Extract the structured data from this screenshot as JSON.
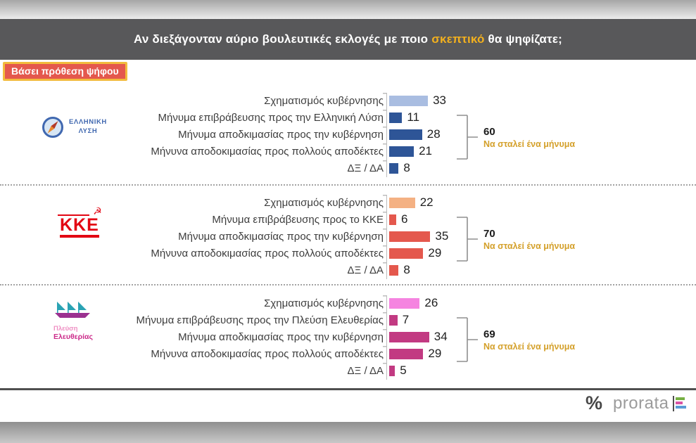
{
  "top_bar": {
    "title_pre": "Αν διεξάγονταν αύριο βουλευτικές εκλογές με ποιο ",
    "title_highlight": "σκεπτικό",
    "title_post": " θα ψηφίζατε;"
  },
  "badge_label": "Βάσει πρόθεση ψήφου",
  "footer": {
    "percent_mark": "%",
    "brand": "prorata"
  },
  "colors": {
    "header_bg": "#58585a",
    "title_highlight": "#f2b01e",
    "badge_bg": "#e4584d",
    "badge_border": "#f2bb3d",
    "summary_label_text": "#d4a02a"
  },
  "chart_data": [
    {
      "type": "bar",
      "orientation": "horizontal",
      "group": "Ελληνική Λύση",
      "logo": {
        "line1": "ΕΛΛΗΝΙΚΗ",
        "line2": "ΛΥΣΗ"
      },
      "categories": [
        "Σχηματισμός κυβέρνησης",
        "Μήνυμα επιβράβευσης προς την Ελληνική Λύση",
        "Μήνυμα αποδκιμασίας προς την κυβέρνηση",
        "Μήνυνα αποδοκιμασίας προς πολλούς αποδέκτες",
        "ΔΞ / ΔΑ"
      ],
      "values": [
        33,
        11,
        28,
        21,
        8
      ],
      "xlim": [
        0,
        40
      ],
      "bar_palette": [
        "light",
        "dark",
        "dark",
        "dark",
        "dark"
      ],
      "color_light": "#a9bde1",
      "color_dark": "#2e5597",
      "annotation": {
        "span_categories": [
          1,
          3
        ],
        "value": 60,
        "label": "Να σταλεί ένα μήνυμα"
      }
    },
    {
      "type": "bar",
      "orientation": "horizontal",
      "group": "ΚΚΕ",
      "logo": {
        "text": "KKE"
      },
      "categories": [
        "Σχηματισμός κυβέρνησης",
        "Μήνυμα επιβράβευσης προς το ΚΚΕ",
        "Μήνυμα αποδκιμασίας προς την κυβέρνηση",
        "Μήνυνα αποδοκιμασίας προς πολλούς αποδέκτες",
        "ΔΞ / ΔΑ"
      ],
      "values": [
        22,
        6,
        35,
        29,
        8
      ],
      "xlim": [
        0,
        40
      ],
      "bar_palette": [
        "light",
        "dark",
        "dark",
        "dark",
        "dark"
      ],
      "color_light": "#f4b183",
      "color_dark": "#e4584d",
      "annotation": {
        "span_categories": [
          1,
          3
        ],
        "value": 70,
        "label": "Να σταλεί ένα μήνυμα"
      }
    },
    {
      "type": "bar",
      "orientation": "horizontal",
      "group": "Πλεύση Ελευθερίας",
      "logo": {
        "line1": "Πλεύση",
        "line2": "Ελευθερίας"
      },
      "categories": [
        "Σχηματισμός κυβέρνησης",
        "Μήνυμα επιβράβευσης προς την Πλεύση Ελευθερίας",
        "Μήνυμα αποδκιμασίας προς την κυβέρνηση",
        "Μήνυνα αποδοκιμασίας προς πολλούς αποδέκτες",
        "ΔΞ / ΔΑ"
      ],
      "values": [
        26,
        7,
        34,
        29,
        5
      ],
      "xlim": [
        0,
        40
      ],
      "bar_palette": [
        "light",
        "dark",
        "dark",
        "dark",
        "dark"
      ],
      "color_light": "#f584e0",
      "color_dark": "#c23a82",
      "annotation": {
        "span_categories": [
          1,
          3
        ],
        "value": 69,
        "label": "Να σταλεί ένα μήνυμα"
      }
    }
  ]
}
